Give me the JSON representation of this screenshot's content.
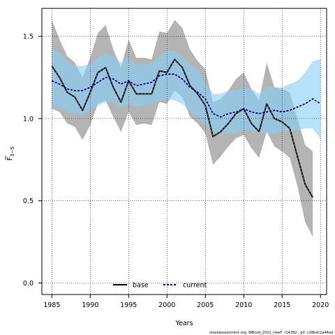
{
  "chart_data": {
    "type": "line",
    "title": "",
    "xlabel": "Years",
    "ylabel": "F",
    "ylabel_subscript": "3−5",
    "xlim": [
      1983.7,
      2020.8
    ],
    "ylim": [
      -0.07,
      1.67
    ],
    "x_ticks": [
      1985,
      1990,
      1995,
      2000,
      2005,
      2010,
      2015,
      2020
    ],
    "x_tick_labels": [
      "1985",
      "1990",
      "1995",
      "2000",
      "2005",
      "2010",
      "2015",
      "2020"
    ],
    "y_ticks": [
      0.0,
      0.5,
      1.0,
      1.5
    ],
    "y_tick_labels": [
      "0.0",
      "0.5",
      "1.0",
      "1.5"
    ],
    "grid": true,
    "legend_position": "bottom-center",
    "series": [
      {
        "name": "base",
        "color": "#000000",
        "band_color": "#b4b4b4",
        "x": [
          1985,
          1986,
          1987,
          1988,
          1989,
          1990,
          1991,
          1992,
          1993,
          1994,
          1995,
          1996,
          1997,
          1998,
          1999,
          2000,
          2001,
          2002,
          2003,
          2004,
          2005,
          2006,
          2007,
          2008,
          2009,
          2010,
          2011,
          2012,
          2013,
          2014,
          2015,
          2016,
          2017,
          2018,
          2019
        ],
        "values": [
          1.32,
          1.25,
          1.16,
          1.13,
          1.05,
          1.16,
          1.28,
          1.31,
          1.19,
          1.1,
          1.23,
          1.15,
          1.15,
          1.15,
          1.29,
          1.28,
          1.36,
          1.31,
          1.2,
          1.15,
          1.08,
          0.89,
          0.92,
          0.97,
          1.03,
          1.06,
          0.97,
          0.92,
          1.09,
          1.0,
          0.98,
          0.94,
          0.77,
          0.6,
          0.52
        ],
        "lower": [
          1.06,
          1.04,
          0.97,
          0.95,
          0.87,
          0.96,
          1.09,
          1.11,
          1.01,
          0.92,
          1.04,
          0.96,
          0.97,
          0.96,
          1.1,
          1.09,
          1.17,
          1.13,
          1.01,
          0.97,
          0.91,
          0.72,
          0.77,
          0.83,
          0.88,
          0.9,
          0.82,
          0.76,
          0.92,
          0.83,
          0.8,
          0.76,
          0.59,
          0.37,
          0.28
        ],
        "upper": [
          1.6,
          1.48,
          1.38,
          1.34,
          1.25,
          1.37,
          1.52,
          1.57,
          1.42,
          1.31,
          1.48,
          1.37,
          1.37,
          1.36,
          1.53,
          1.52,
          1.6,
          1.55,
          1.42,
          1.35,
          1.3,
          1.1,
          1.12,
          1.17,
          1.24,
          1.28,
          1.18,
          1.11,
          1.34,
          1.19,
          1.18,
          1.16,
          1.0,
          0.84,
          0.8
        ]
      },
      {
        "name": "current",
        "color": "#00008b",
        "band_color": "#87cefa",
        "x": [
          1985,
          1986,
          1987,
          1988,
          1989,
          1990,
          1991,
          1992,
          1993,
          1994,
          1995,
          1996,
          1997,
          1998,
          1999,
          2000,
          2001,
          2002,
          2003,
          2004,
          2005,
          2006,
          2007,
          2008,
          2009,
          2010,
          2011,
          2012,
          2013,
          2014,
          2015,
          2016,
          2017,
          2018,
          2019,
          2020
        ],
        "values": [
          1.23,
          1.21,
          1.18,
          1.17,
          1.17,
          1.19,
          1.22,
          1.25,
          1.24,
          1.21,
          1.23,
          1.2,
          1.21,
          1.22,
          1.26,
          1.27,
          1.27,
          1.24,
          1.19,
          1.16,
          1.12,
          1.03,
          1.01,
          1.03,
          1.04,
          1.06,
          1.04,
          1.03,
          1.04,
          1.05,
          1.04,
          1.05,
          1.07,
          1.09,
          1.12,
          1.09
        ],
        "lower": [
          1.08,
          1.06,
          1.04,
          1.03,
          1.03,
          1.05,
          1.08,
          1.1,
          1.1,
          1.07,
          1.09,
          1.07,
          1.08,
          1.09,
          1.11,
          1.12,
          1.11,
          1.09,
          1.04,
          1.01,
          0.96,
          0.92,
          0.91,
          0.91,
          0.91,
          0.93,
          0.93,
          0.91,
          0.91,
          0.91,
          0.92,
          0.93,
          0.93,
          0.94,
          0.94,
          0.88
        ],
        "upper": [
          1.43,
          1.4,
          1.35,
          1.32,
          1.32,
          1.33,
          1.37,
          1.4,
          1.38,
          1.34,
          1.37,
          1.33,
          1.33,
          1.34,
          1.38,
          1.41,
          1.41,
          1.38,
          1.33,
          1.3,
          1.22,
          1.15,
          1.15,
          1.17,
          1.17,
          1.19,
          1.18,
          1.15,
          1.19,
          1.19,
          1.19,
          1.21,
          1.23,
          1.28,
          1.35,
          1.36
        ]
      }
    ],
    "footer": "stockassessment.org, WBcod_2021_newF, r14282 , git: c28bdc2a44ad"
  }
}
